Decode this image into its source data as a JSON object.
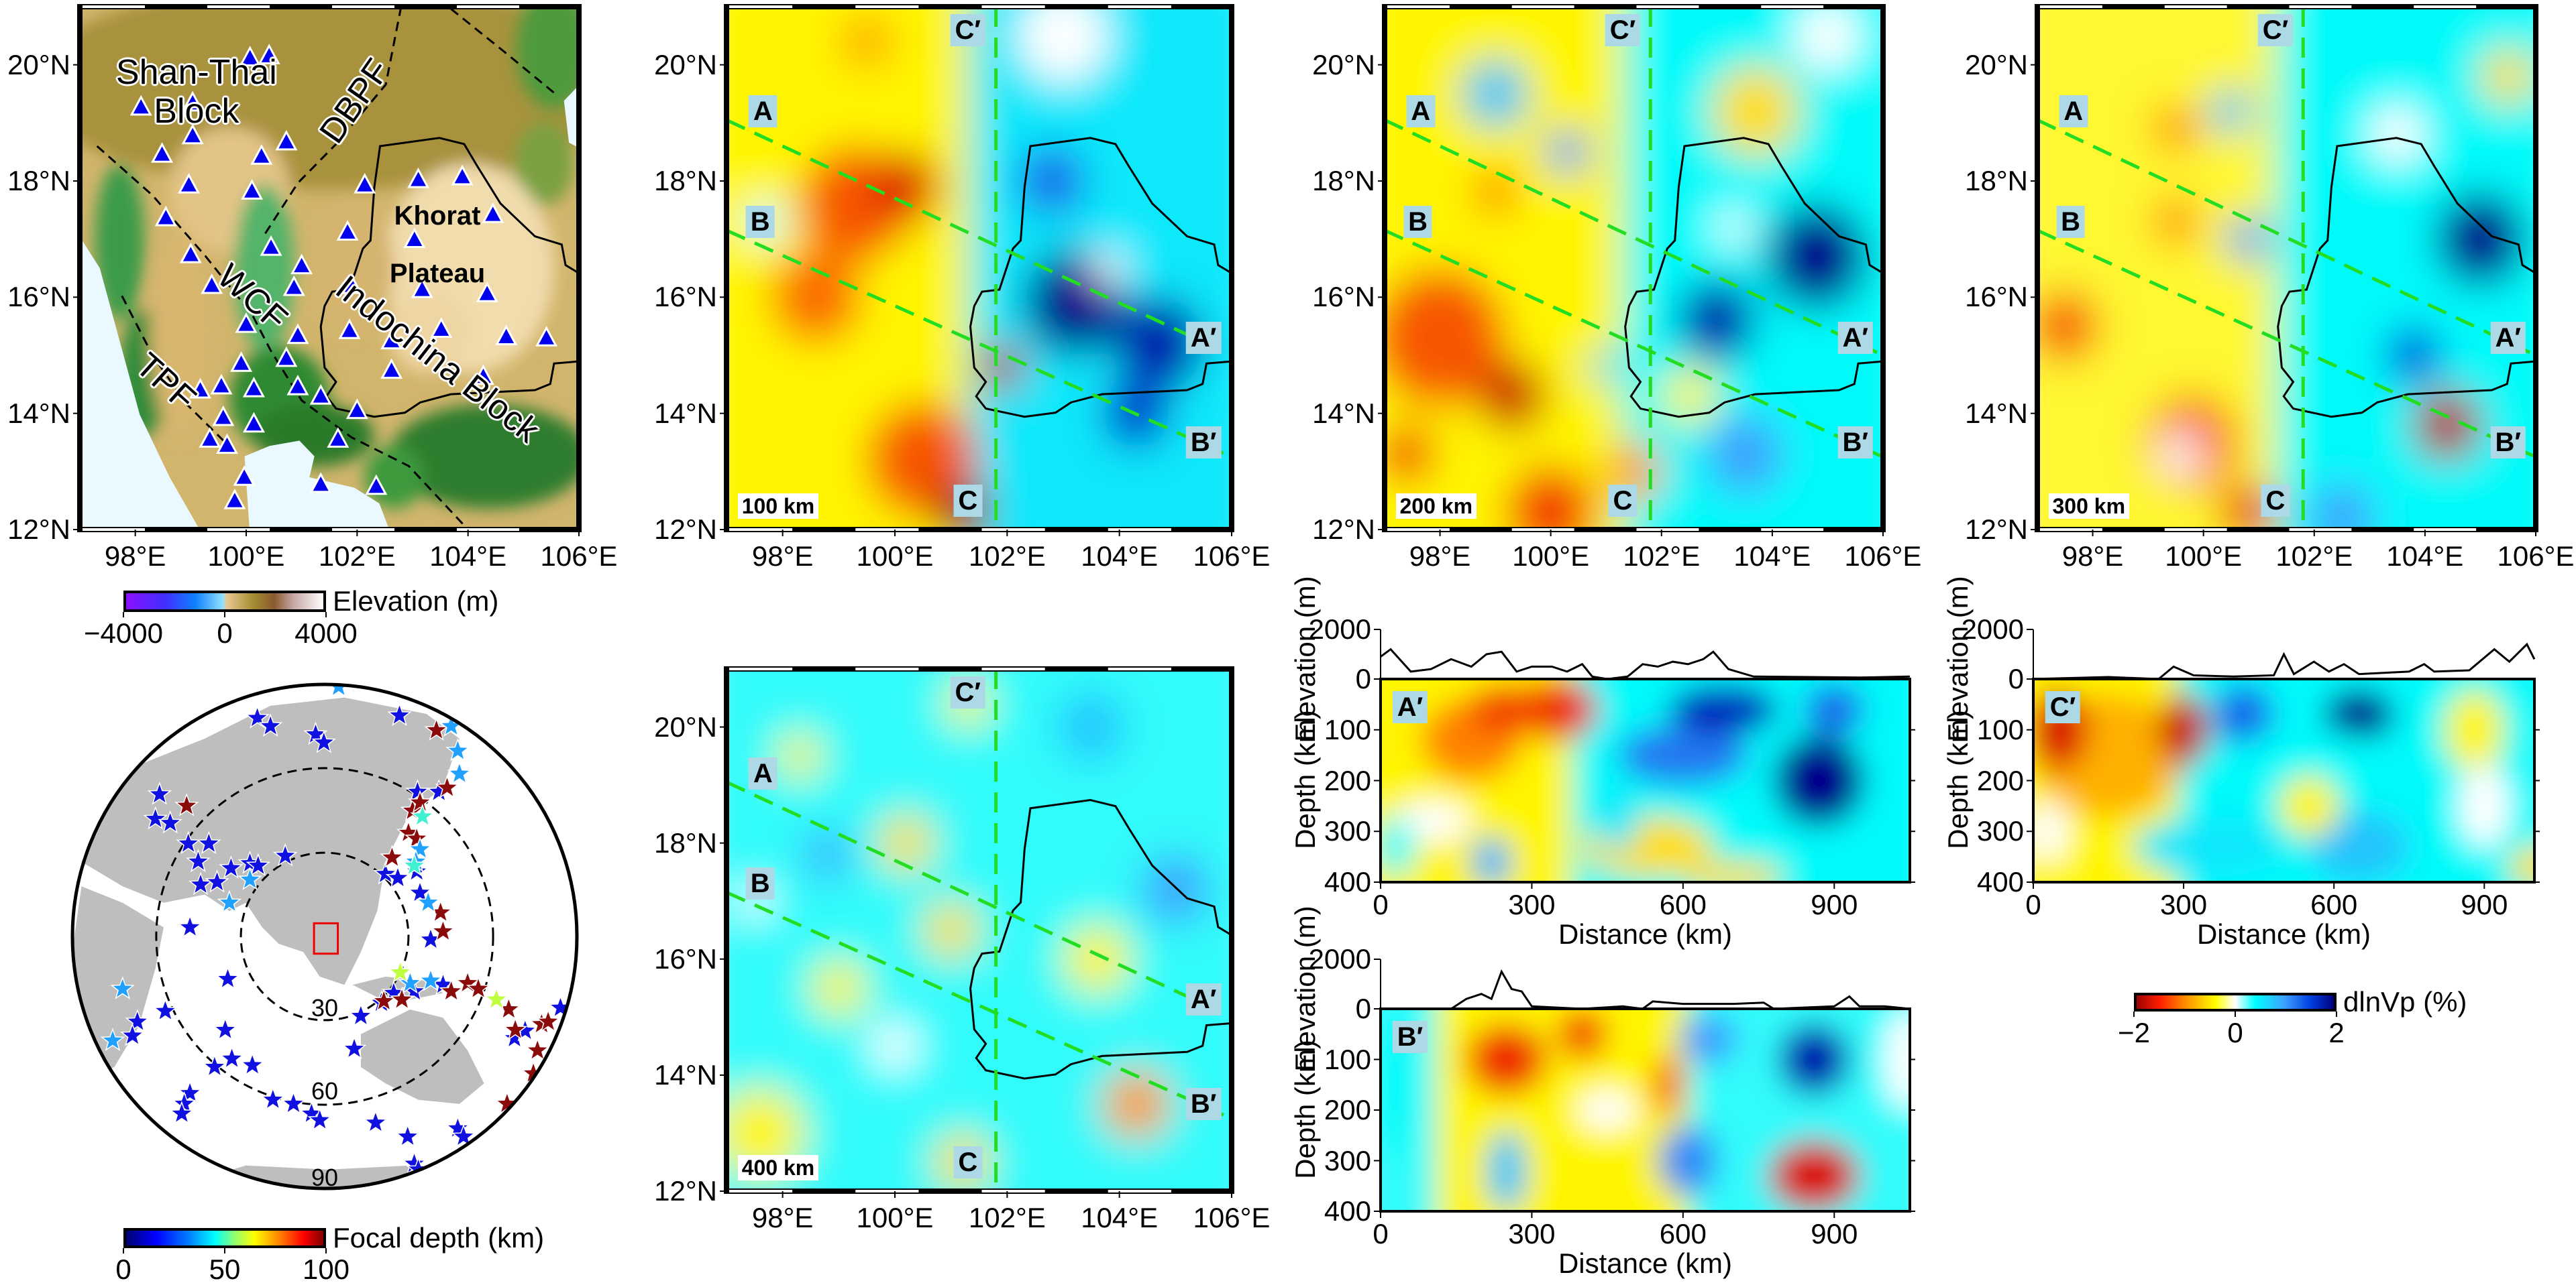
{
  "topo_map": {
    "block_name_1": "Shan-Thai",
    "block_name_2": "Block",
    "fault_dbpf": "DBPF",
    "fault_wcf": "WCF",
    "fault_tpf": "TPF",
    "plateau_1": "Khorat",
    "plateau_2": "Plateau",
    "block_indochina": "Indochina Block"
  },
  "map_axes": {
    "lat_ticks": [
      "12°N",
      "14°N",
      "16°N",
      "18°N",
      "20°N"
    ],
    "lon_ticks": [
      "98°E",
      "100°E",
      "102°E",
      "104°E",
      "106°E"
    ]
  },
  "elevation_colorbar": {
    "label": "Elevation (m)",
    "ticks": [
      "−4000",
      "0",
      "4000"
    ]
  },
  "globe": {
    "ring_labels": [
      "30",
      "60",
      "90"
    ]
  },
  "focal_colorbar": {
    "label": "Focal depth (km)",
    "ticks": [
      "0",
      "50",
      "100"
    ]
  },
  "tomography_maps": [
    {
      "depth_label": "100 km"
    },
    {
      "depth_label": "200 km"
    },
    {
      "depth_label": "300 km"
    },
    {
      "depth_label": "400 km"
    }
  ],
  "profiles": {
    "A_start": "A",
    "A_end": "A′",
    "B_start": "B",
    "B_end": "B′",
    "C_start": "C",
    "C_end": "C′"
  },
  "cross_sections": [
    {
      "label": "A′",
      "distance_max_km": 1050
    },
    {
      "label": "C′",
      "distance_max_km": 1000
    },
    {
      "label": "B′",
      "distance_max_km": 1050
    }
  ],
  "section_axes": {
    "elevation_label": "Elevation (m)",
    "depth_label": "Depth (km)",
    "distance_label": "Distance (km)",
    "elevation_ticks": [
      "0",
      "2000"
    ],
    "depth_ticks": [
      "0",
      "100",
      "200",
      "300",
      "400"
    ],
    "distance_ticks": [
      "0",
      "300",
      "600",
      "900"
    ]
  },
  "dlnvp_colorbar": {
    "label": "dlnVp (%)",
    "ticks": [
      "−2",
      "0",
      "2"
    ]
  },
  "colors": {
    "profile_line": "#22dd22",
    "station": "#0000ee",
    "study_area_box": "#ee0000",
    "label_box": "#add8e6"
  }
}
